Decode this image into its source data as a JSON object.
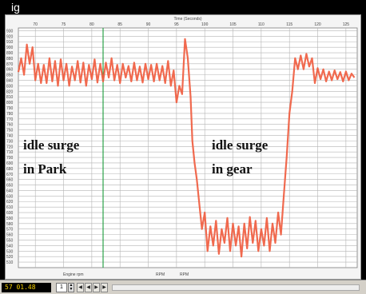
{
  "window": {
    "title_fragment": "ig"
  },
  "chart_data": {
    "type": "line",
    "xlabel": "Time (Seconds)",
    "x_ticks": [
      "70",
      "75",
      "80",
      "85",
      "90",
      "95",
      "100",
      "105",
      "110",
      "115",
      "120",
      "125"
    ],
    "y_ticks": [
      "930",
      "920",
      "910",
      "900",
      "890",
      "880",
      "870",
      "860",
      "850",
      "840",
      "830",
      "820",
      "810",
      "800",
      "790",
      "780",
      "770",
      "760",
      "750",
      "740",
      "730",
      "720",
      "710",
      "700",
      "690",
      "680",
      "670",
      "660",
      "650",
      "640",
      "630",
      "620",
      "610",
      "600",
      "590",
      "580",
      "570",
      "560",
      "550",
      "540",
      "530",
      "520",
      "510"
    ],
    "xlim": [
      67,
      127
    ],
    "ylim": [
      500,
      935
    ],
    "grid": true,
    "series_color": "#ef5a3c",
    "marker_color": "#1a9a3a",
    "marker_x": 82,
    "legend_items": [
      "Engine rpm",
      "RPM",
      "RPM"
    ],
    "annotations": [
      {
        "line1": "idle surge",
        "line2": "in Park"
      },
      {
        "line1": "idle surge",
        "line2": "in gear"
      }
    ],
    "points": [
      [
        67.0,
        855
      ],
      [
        67.5,
        880
      ],
      [
        68.0,
        850
      ],
      [
        68.5,
        905
      ],
      [
        69.0,
        870
      ],
      [
        69.5,
        900
      ],
      [
        70.0,
        840
      ],
      [
        70.5,
        870
      ],
      [
        71.0,
        835
      ],
      [
        71.5,
        868
      ],
      [
        72.0,
        835
      ],
      [
        72.5,
        880
      ],
      [
        73.0,
        838
      ],
      [
        73.5,
        875
      ],
      [
        74.0,
        830
      ],
      [
        74.5,
        878
      ],
      [
        75.0,
        840
      ],
      [
        75.5,
        870
      ],
      [
        76.0,
        830
      ],
      [
        76.5,
        865
      ],
      [
        77.0,
        840
      ],
      [
        77.5,
        875
      ],
      [
        78.0,
        836
      ],
      [
        78.5,
        872
      ],
      [
        79.0,
        830
      ],
      [
        79.5,
        868
      ],
      [
        80.0,
        842
      ],
      [
        80.5,
        878
      ],
      [
        81.0,
        836
      ],
      [
        81.5,
        870
      ],
      [
        82.0,
        838
      ],
      [
        82.5,
        872
      ],
      [
        83.0,
        845
      ],
      [
        83.5,
        880
      ],
      [
        84.0,
        840
      ],
      [
        84.5,
        868
      ],
      [
        85.0,
        835
      ],
      [
        85.5,
        870
      ],
      [
        86.0,
        845
      ],
      [
        86.5,
        866
      ],
      [
        87.0,
        838
      ],
      [
        87.5,
        872
      ],
      [
        88.0,
        840
      ],
      [
        88.5,
        865
      ],
      [
        89.0,
        836
      ],
      [
        89.5,
        870
      ],
      [
        90.0,
        842
      ],
      [
        90.5,
        868
      ],
      [
        91.0,
        838
      ],
      [
        91.5,
        870
      ],
      [
        92.0,
        840
      ],
      [
        92.5,
        866
      ],
      [
        93.0,
        835
      ],
      [
        93.5,
        875
      ],
      [
        94.0,
        830
      ],
      [
        94.5,
        858
      ],
      [
        95.0,
        800
      ],
      [
        95.5,
        830
      ],
      [
        96.0,
        815
      ],
      [
        96.5,
        915
      ],
      [
        97.0,
        880
      ],
      [
        97.5,
        810
      ],
      [
        97.8,
        730
      ],
      [
        98.2,
        690
      ],
      [
        98.6,
        660
      ],
      [
        99.0,
        620
      ],
      [
        99.5,
        570
      ],
      [
        100.0,
        600
      ],
      [
        100.5,
        530
      ],
      [
        101.0,
        575
      ],
      [
        101.5,
        540
      ],
      [
        102.0,
        585
      ],
      [
        102.5,
        525
      ],
      [
        103.0,
        570
      ],
      [
        103.5,
        545
      ],
      [
        104.0,
        590
      ],
      [
        104.5,
        530
      ],
      [
        105.0,
        580
      ],
      [
        105.5,
        540
      ],
      [
        106.0,
        575
      ],
      [
        106.5,
        520
      ],
      [
        107.0,
        580
      ],
      [
        107.5,
        535
      ],
      [
        108.0,
        592
      ],
      [
        108.5,
        545
      ],
      [
        109.0,
        585
      ],
      [
        109.5,
        530
      ],
      [
        110.0,
        570
      ],
      [
        110.5,
        540
      ],
      [
        111.0,
        590
      ],
      [
        111.5,
        530
      ],
      [
        112.0,
        580
      ],
      [
        112.5,
        545
      ],
      [
        113.0,
        600
      ],
      [
        113.5,
        560
      ],
      [
        114.0,
        630
      ],
      [
        114.5,
        700
      ],
      [
        115.0,
        780
      ],
      [
        115.5,
        820
      ],
      [
        116.0,
        880
      ],
      [
        116.5,
        860
      ],
      [
        117.0,
        885
      ],
      [
        117.5,
        860
      ],
      [
        118.0,
        888
      ],
      [
        118.5,
        865
      ],
      [
        119.0,
        880
      ],
      [
        119.5,
        835
      ],
      [
        120.0,
        862
      ],
      [
        120.5,
        842
      ],
      [
        121.0,
        860
      ],
      [
        121.5,
        838
      ],
      [
        122.0,
        856
      ],
      [
        122.5,
        840
      ],
      [
        123.0,
        858
      ],
      [
        123.5,
        842
      ],
      [
        124.0,
        855
      ],
      [
        124.5,
        838
      ],
      [
        125.0,
        856
      ],
      [
        125.5,
        840
      ],
      [
        126.0,
        852
      ],
      [
        126.5,
        845
      ]
    ]
  },
  "statusbar": {
    "position": "57 01.48",
    "field_value": "1",
    "nav": [
      "◀",
      "◀",
      "▶",
      "▶"
    ]
  }
}
